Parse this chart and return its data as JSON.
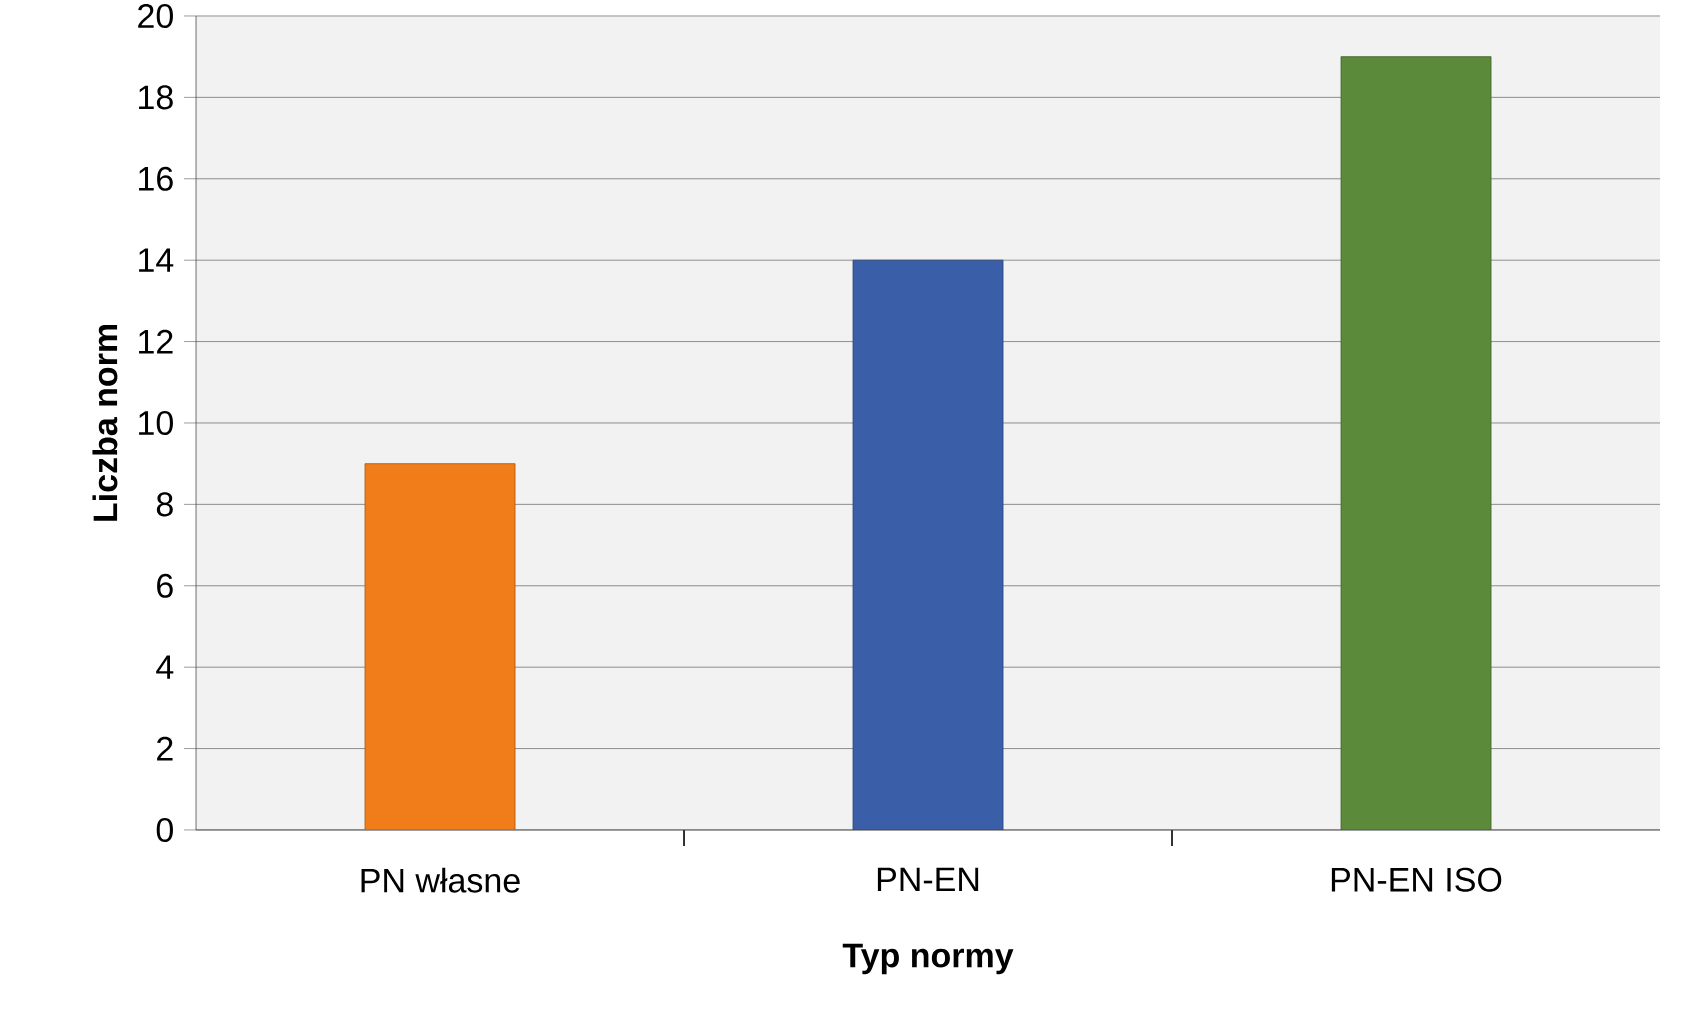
{
  "chart_data": {
    "type": "bar",
    "xlabel": "Typ normy",
    "ylabel": "Liczba norm",
    "categories": [
      "PN własne",
      "PN-EN",
      "PN-EN ISO"
    ],
    "values": [
      9,
      14,
      19
    ],
    "colors": [
      "#f07c1a",
      "#3a5fa8",
      "#5a8a3a"
    ],
    "ylim": [
      0,
      20
    ],
    "yticks": [
      0,
      2,
      4,
      6,
      8,
      10,
      12,
      14,
      16,
      18,
      20
    ],
    "grid": "y"
  }
}
